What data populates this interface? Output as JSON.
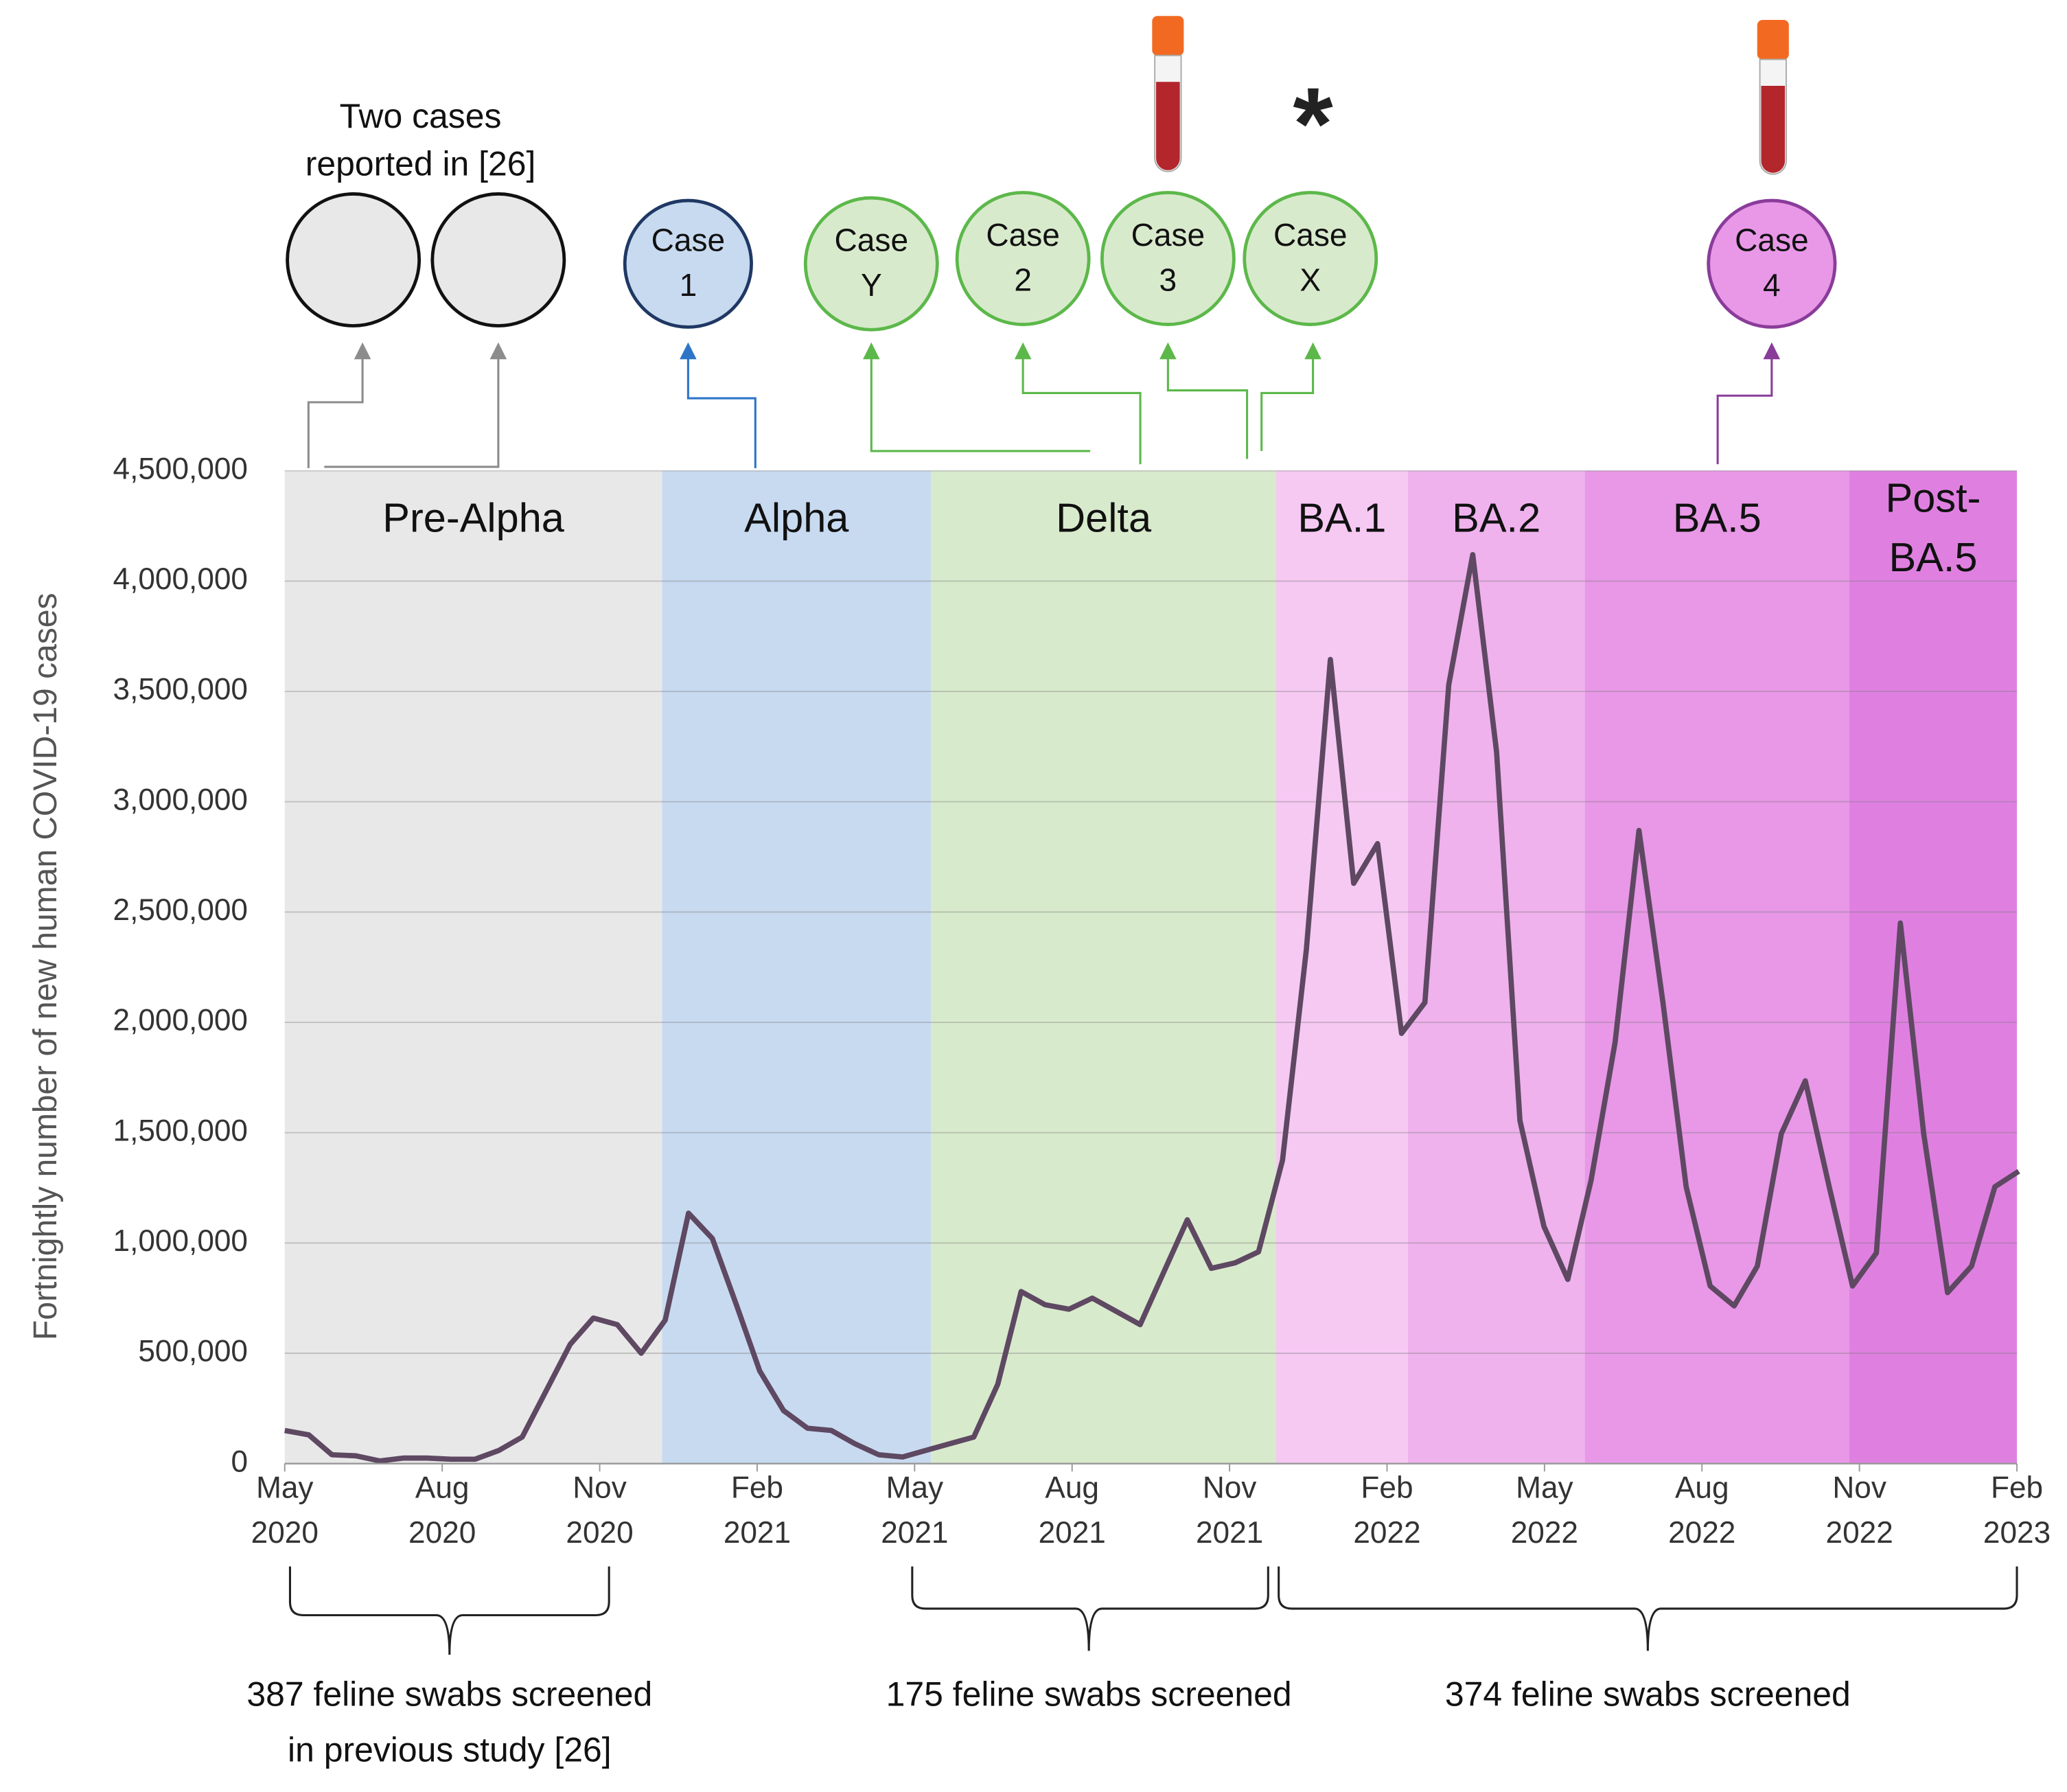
{
  "chart_data": {
    "type": "line",
    "ylabel": "Fortnightly number of new human COVID-19 cases",
    "xlim": [
      2020.333,
      2023.083
    ],
    "ylim": [
      0,
      4500000
    ],
    "grid": true,
    "yticks": [
      0,
      {
        "value": 500000,
        "label": "500,000"
      },
      {
        "value": 1000000,
        "label": "1,000,000"
      },
      {
        "value": 1500000,
        "label": "1,500,000"
      },
      {
        "value": 2000000,
        "label": "2,000,000"
      },
      {
        "value": 2500000,
        "label": "2,500,000"
      },
      {
        "value": 3000000,
        "label": "3,000,000"
      },
      {
        "value": 3500000,
        "label": "3,500,000"
      },
      {
        "value": 4000000,
        "label": "4,000,000"
      },
      {
        "value": 4500000,
        "label": "4,500,000"
      }
    ],
    "xticks": [
      {
        "value": 2020.333,
        "label": [
          "May",
          "2020"
        ]
      },
      {
        "value": 2020.583,
        "label": [
          "Aug",
          "2020"
        ]
      },
      {
        "value": 2020.833,
        "label": [
          "Nov",
          "2020"
        ]
      },
      {
        "value": 2021.083,
        "label": [
          "Feb",
          "2021"
        ]
      },
      {
        "value": 2021.333,
        "label": [
          "May",
          "2021"
        ]
      },
      {
        "value": 2021.583,
        "label": [
          "Aug",
          "2021"
        ]
      },
      {
        "value": 2021.833,
        "label": [
          "Nov",
          "2021"
        ]
      },
      {
        "value": 2022.083,
        "label": [
          "Feb",
          "2022"
        ]
      },
      {
        "value": 2022.333,
        "label": [
          "May",
          "2022"
        ]
      },
      {
        "value": 2022.583,
        "label": [
          "Aug",
          "2022"
        ]
      },
      {
        "value": 2022.833,
        "label": [
          "Nov",
          "2022"
        ]
      },
      {
        "value": 2023.083,
        "label": [
          "Feb",
          "2023"
        ]
      }
    ],
    "periods": [
      {
        "label": [
          "Pre-Alpha"
        ],
        "start": 2020.333,
        "end": 2020.932,
        "color": "#e8e8e8"
      },
      {
        "label": [
          "Alpha"
        ],
        "start": 2020.932,
        "end": 2021.359,
        "color": "#c8daf0"
      },
      {
        "label": [
          "Delta"
        ],
        "start": 2021.359,
        "end": 2021.907,
        "color": "#d8eacc"
      },
      {
        "label": [
          "BA.1"
        ],
        "start": 2021.907,
        "end": 2022.116,
        "color": "#f6c9f3"
      },
      {
        "label": [
          "BA.2"
        ],
        "start": 2022.116,
        "end": 2022.397,
        "color": "#efb2ed"
      },
      {
        "label": [
          "BA.5"
        ],
        "start": 2022.397,
        "end": 2022.817,
        "color": "#e898e7"
      },
      {
        "label": [
          "Post-",
          "BA.5"
        ],
        "start": 2022.817,
        "end": 2023.083,
        "color": "#df80e1"
      }
    ],
    "series": [
      {
        "color": "#5e4862",
        "x": [
          2020.333,
          2020.371,
          2020.408,
          2020.446,
          2020.484,
          2020.522,
          2020.559,
          2020.597,
          2020.635,
          2020.673,
          2020.71,
          2020.748,
          2020.786,
          2020.823,
          2020.861,
          2020.899,
          2020.937,
          2020.974,
          2021.012,
          2021.05,
          2021.087,
          2021.125,
          2021.163,
          2021.201,
          2021.238,
          2021.276,
          2021.314,
          2021.351,
          2021.389,
          2021.427,
          2021.465,
          2021.502,
          2021.54,
          2021.578,
          2021.615,
          2021.653,
          2021.691,
          2021.729,
          2021.766,
          2021.804,
          2021.842,
          2021.879,
          2021.917,
          2021.955,
          2021.993,
          2022.03,
          2022.068,
          2022.106,
          2022.143,
          2022.181,
          2022.219,
          2022.257,
          2022.294,
          2022.332,
          2022.37,
          2022.407,
          2022.445,
          2022.483,
          2022.521,
          2022.558,
          2022.596,
          2022.634,
          2022.671,
          2022.709,
          2022.747,
          2022.785,
          2022.822,
          2022.86,
          2022.898,
          2022.935,
          2022.973,
          2023.011,
          2023.048,
          2023.086
        ],
        "values": [
          150000,
          130000,
          40000,
          35000,
          12000,
          25000,
          25000,
          20000,
          20000,
          60000,
          120000,
          330000,
          540000,
          660000,
          630000,
          500000,
          650000,
          1135000,
          1020000,
          720000,
          420000,
          240000,
          160000,
          150000,
          90000,
          40000,
          30000,
          60000,
          90000,
          120000,
          360000,
          780000,
          720000,
          700000,
          750000,
          690000,
          630000,
          870000,
          1105000,
          885000,
          910000,
          960000,
          1375000,
          2330000,
          3645000,
          2630000,
          2810000,
          1950000,
          2090000,
          3530000,
          4120000,
          3225000,
          1555000,
          1075000,
          835000,
          1285000,
          1910000,
          2870000,
          2090000,
          1255000,
          805000,
          715000,
          895000,
          1495000,
          1735000,
          1255000,
          805000,
          955000,
          2450000,
          1495000,
          775000,
          895000,
          1255000,
          1325000
        ]
      }
    ],
    "two_cases_note": [
      "Two cases",
      "reported in [26]"
    ],
    "asterisk": "*",
    "cases": [
      {
        "label": [
          "Case",
          "1"
        ],
        "color": "#c8daf0",
        "stroke": "#1f3864"
      },
      {
        "label": [
          "Case",
          "Y"
        ],
        "color": "#d8eacc",
        "stroke": "#5cb84a"
      },
      {
        "label": [
          "Case",
          "2"
        ],
        "color": "#d8eacc",
        "stroke": "#5cb84a"
      },
      {
        "label": [
          "Case",
          "3"
        ],
        "color": "#d8eacc",
        "stroke": "#5cb84a"
      },
      {
        "label": [
          "Case",
          "X"
        ],
        "color": "#d8eacc",
        "stroke": "#5cb84a"
      },
      {
        "label": [
          "Case",
          "4"
        ],
        "color": "#e898e7",
        "stroke": "#8a3c9a"
      }
    ],
    "swabs": [
      [
        "387 feline swabs screened",
        "in previous study [26]"
      ],
      [
        "175 feline swabs screened"
      ],
      [
        "374 feline swabs screened"
      ]
    ]
  }
}
